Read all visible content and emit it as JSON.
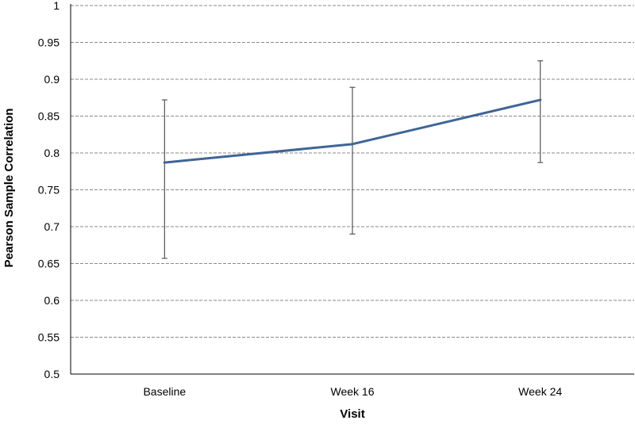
{
  "chart_data": {
    "type": "line",
    "title": "",
    "xlabel": "Visit",
    "ylabel": "Pearson Sample Correlation",
    "categories": [
      "Baseline",
      "Week 16",
      "Week 24"
    ],
    "series": [
      {
        "values": [
          0.787,
          0.812,
          0.872
        ],
        "error_low": [
          0.657,
          0.69,
          0.787
        ],
        "error_high": [
          0.872,
          0.889,
          0.925
        ],
        "color": "#3f6597"
      }
    ],
    "ylim": [
      0.5,
      1
    ],
    "yticks": [
      "0.5",
      "0.55",
      "0.6",
      "0.65",
      "0.7",
      "0.75",
      "0.8",
      "0.85",
      "0.9",
      "0.95",
      "1"
    ],
    "grid": true,
    "grid_style": "dashed",
    "legend": "none"
  }
}
